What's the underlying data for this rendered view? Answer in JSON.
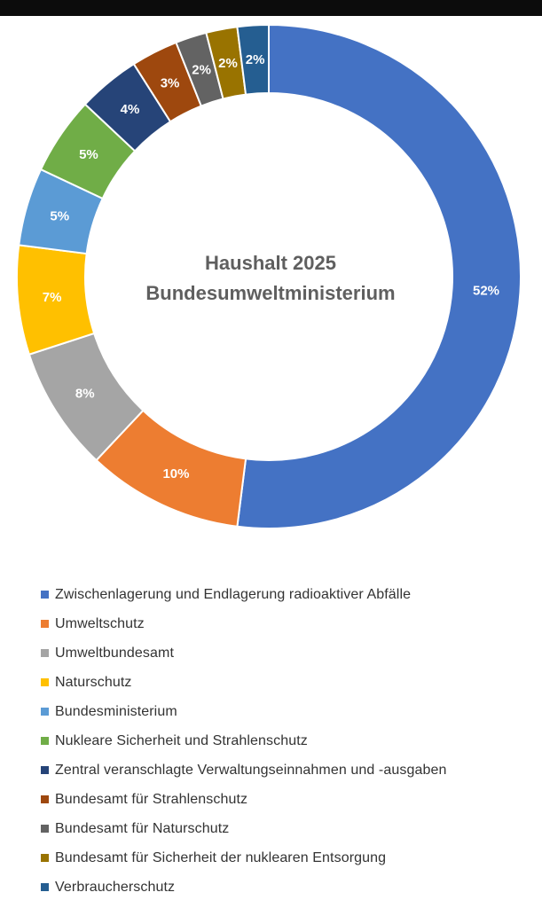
{
  "chart_data": {
    "type": "pie",
    "subtype": "donut",
    "title_lines": [
      "Haushalt 2025",
      "Bundesumweltministerium"
    ],
    "label_format": "percent",
    "categories": [
      "Zwischenlagerung und Endlagerung radioaktiver Abfälle",
      "Umweltschutz",
      "Umweltbundesamt",
      "Naturschutz",
      "Bundesministerium",
      "Nukleare Sicherheit und Strahlenschutz",
      "Zentral veranschlagte Verwaltungseinnahmen und -ausgaben",
      "Bundesamt für Strahlenschutz",
      "Bundesamt für Naturschutz",
      "Bundesamt für Sicherheit der nuklearen Entsorgung",
      "Verbraucherschutz"
    ],
    "values": [
      52,
      10,
      8,
      7,
      5,
      5,
      4,
      3,
      2,
      2,
      2
    ],
    "labels": [
      "52%",
      "10%",
      "8%",
      "7%",
      "5%",
      "5%",
      "4%",
      "3%",
      "2%",
      "2%",
      "2%"
    ],
    "colors": [
      "#4472c4",
      "#ed7d31",
      "#a5a5a5",
      "#ffc000",
      "#5b9bd5",
      "#70ad47",
      "#264478",
      "#9e480e",
      "#636363",
      "#997300",
      "#255e91"
    ],
    "legend_position": "bottom"
  }
}
